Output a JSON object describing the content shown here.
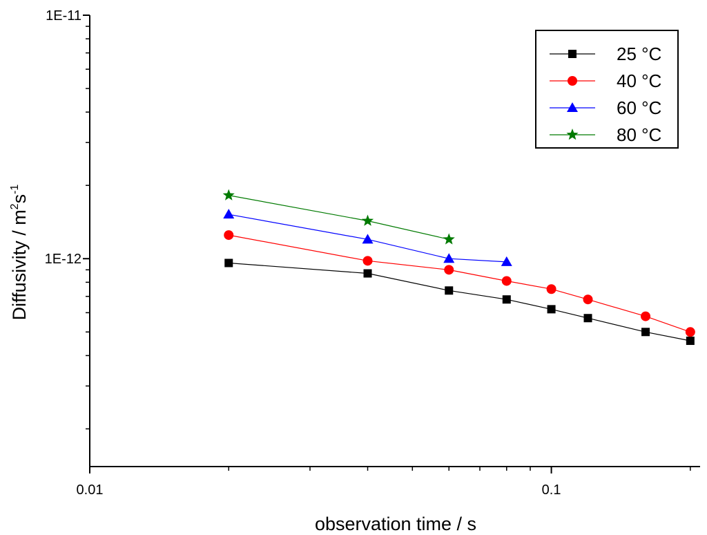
{
  "chart_data": {
    "type": "line",
    "xlabel": "observation time / s",
    "ylabel_parts": {
      "prefix": "Diffusivity / m",
      "sup1": "2",
      "mid": "s",
      "sup2": "-1"
    },
    "xscale": "log",
    "yscale": "log",
    "xlim": [
      0.01,
      0.21
    ],
    "ylim": [
      1.4e-13,
      1e-11
    ],
    "xticks": [
      {
        "value": 0.01,
        "label": "0.01"
      },
      {
        "value": 0.1,
        "label": "0.1"
      }
    ],
    "yticks": [
      {
        "value": 1e-12,
        "label": "1E-12"
      },
      {
        "value": 1e-11,
        "label": "1E-11"
      }
    ],
    "legend_position": "top-right",
    "series": [
      {
        "name": "25 °C",
        "color": "#000000",
        "marker": "square",
        "x": [
          0.02,
          0.04,
          0.06,
          0.08,
          0.1,
          0.12,
          0.16,
          0.2
        ],
        "y": [
          9.6e-13,
          8.7e-13,
          7.4e-13,
          6.8e-13,
          6.2e-13,
          5.7e-13,
          5e-13,
          4.6e-13
        ]
      },
      {
        "name": "40 °C",
        "color": "#ff0000",
        "marker": "circle",
        "x": [
          0.02,
          0.04,
          0.06,
          0.08,
          0.1,
          0.12,
          0.16,
          0.2
        ],
        "y": [
          1.25e-12,
          9.8e-13,
          9e-13,
          8.1e-13,
          7.5e-13,
          6.8e-13,
          5.8e-13,
          5e-13
        ]
      },
      {
        "name": "60 °C",
        "color": "#0000ff",
        "marker": "triangle",
        "x": [
          0.02,
          0.04,
          0.06,
          0.08
        ],
        "y": [
          1.52e-12,
          1.2e-12,
          1e-12,
          9.7e-13
        ]
      },
      {
        "name": "80 °C",
        "color": "#007a00",
        "marker": "star",
        "x": [
          0.02,
          0.04,
          0.06
        ],
        "y": [
          1.82e-12,
          1.43e-12,
          1.2e-12
        ]
      }
    ]
  }
}
